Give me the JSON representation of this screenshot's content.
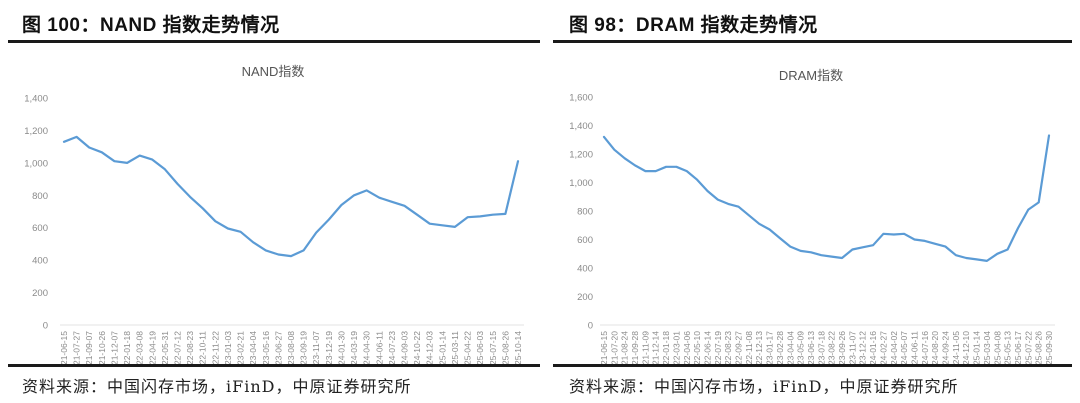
{
  "figures": [
    {
      "title": "图 100：NAND 指数走势情况",
      "source": "资料来源：中国闪存市场，iFinD，中原证券研究所"
    },
    {
      "title": "图 98：DRAM 指数走势情况",
      "source": "资料来源：中国闪存市场，iFinD，中原证券研究所"
    }
  ],
  "chart_data": [
    {
      "type": "line",
      "title": "NAND指数",
      "xlabel": "",
      "ylabel": "",
      "ylim": [
        0,
        1400
      ],
      "yticks": [
        "0",
        "200",
        "400",
        "600",
        "800",
        "1,000",
        "1,200",
        "1,400"
      ],
      "grid": false,
      "legend": "none",
      "line_color": "#5b9bd5",
      "categories": [
        "2021-06-15",
        "2021-07-27",
        "2021-09-07",
        "2021-10-26",
        "2021-12-07",
        "2022-01-18",
        "2022-03-08",
        "2022-04-19",
        "2022-05-31",
        "2022-07-12",
        "2022-08-23",
        "2022-10-11",
        "2022-11-22",
        "2023-01-03",
        "2023-02-21",
        "2023-04-04",
        "2023-05-16",
        "2023-06-27",
        "2023-08-08",
        "2023-09-19",
        "2023-11-07",
        "2023-12-19",
        "2024-01-30",
        "2024-03-19",
        "2024-04-30",
        "2024-06-11",
        "2024-07-23",
        "2024-09-03",
        "2024-10-22",
        "2024-12-03",
        "2025-01-14",
        "2025-03-11",
        "2025-04-22",
        "2025-06-03",
        "2025-07-15",
        "2025-08-26",
        "2025-10-14"
      ],
      "series": [
        {
          "name": "NAND指数",
          "values": [
            1130,
            1160,
            1095,
            1065,
            1010,
            1000,
            1045,
            1020,
            960,
            870,
            790,
            720,
            640,
            595,
            575,
            510,
            460,
            435,
            425,
            460,
            570,
            650,
            740,
            800,
            830,
            785,
            760,
            735,
            680,
            625,
            615,
            605,
            665,
            670,
            680,
            685,
            1010
          ]
        }
      ]
    },
    {
      "type": "line",
      "title": "DRAM指数",
      "xlabel": "",
      "ylabel": "",
      "ylim": [
        0,
        1600
      ],
      "yticks": [
        "0",
        "200",
        "400",
        "600",
        "800",
        "1,000",
        "1,200",
        "1,400",
        "1,600"
      ],
      "grid": false,
      "legend": "none",
      "line_color": "#5b9bd5",
      "categories": [
        "2021-06-15",
        "2021-07-20",
        "2021-08-24",
        "2021-09-28",
        "2021-11-09",
        "2021-12-14",
        "2022-01-18",
        "2022-03-01",
        "2022-04-06",
        "2022-05-10",
        "2022-06-14",
        "2022-07-19",
        "2022-08-23",
        "2022-09-27",
        "2022-11-08",
        "2022-12-13",
        "2023-01-17",
        "2023-02-28",
        "2023-04-04",
        "2023-05-09",
        "2023-06-13",
        "2023-07-18",
        "2023-08-22",
        "2023-09-26",
        "2023-11-07",
        "2023-12-12",
        "2024-01-16",
        "2024-02-27",
        "2024-04-02",
        "2024-05-07",
        "2024-06-11",
        "2024-07-16",
        "2024-08-20",
        "2024-09-24",
        "2024-11-05",
        "2024-12-10",
        "2025-01-14",
        "2025-03-04",
        "2025-04-08",
        "2025-05-13",
        "2025-06-17",
        "2025-07-22",
        "2025-08-26",
        "2025-09-30"
      ],
      "series": [
        {
          "name": "DRAM指数",
          "values": [
            1320,
            1230,
            1170,
            1120,
            1080,
            1080,
            1110,
            1110,
            1080,
            1020,
            940,
            880,
            850,
            830,
            770,
            710,
            670,
            610,
            550,
            520,
            510,
            490,
            480,
            470,
            530,
            545,
            560,
            640,
            635,
            640,
            600,
            590,
            570,
            550,
            490,
            470,
            460,
            450,
            500,
            530,
            680,
            810,
            860,
            1330
          ]
        }
      ]
    }
  ]
}
